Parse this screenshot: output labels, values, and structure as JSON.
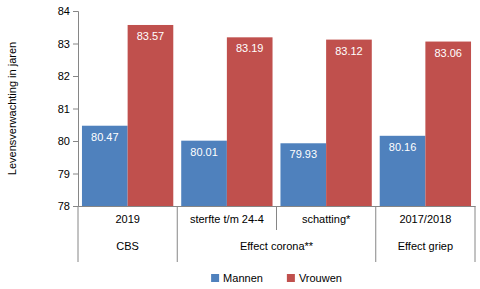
{
  "chart_data": {
    "type": "bar",
    "y_label": "Levensverwachting in jaren",
    "categories": [
      "2019",
      "sterfte t/m 24-4",
      "schatting*",
      "2017/2018"
    ],
    "category_groups": [
      "CBS",
      "Effect corona**",
      "Effect corona**",
      "Effect griep"
    ],
    "series": [
      {
        "name": "Mannen",
        "color": "#4f81bd",
        "values": [
          80.47,
          80.01,
          79.93,
          80.16
        ]
      },
      {
        "name": "Vrouwen",
        "color": "#c0504d",
        "values": [
          83.57,
          83.19,
          83.12,
          83.06
        ]
      }
    ],
    "ylim": [
      78,
      84
    ],
    "yticks": [
      78,
      79,
      80,
      81,
      82,
      83,
      84
    ],
    "grid": false,
    "data_labels": true,
    "legend": "bottom"
  }
}
